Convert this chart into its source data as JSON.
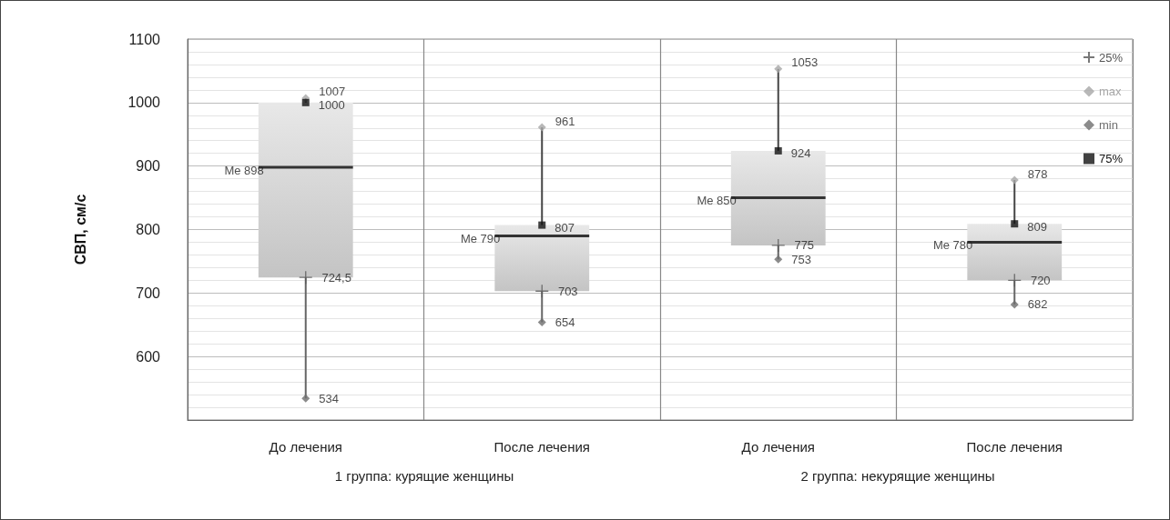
{
  "chart_data": {
    "type": "box",
    "ylabel": "СВП, см/с",
    "categories": [
      "До лечения",
      "После лечения",
      "До лечения",
      "После лечения"
    ],
    "boxes": [
      {
        "low": 534,
        "q1": 724.5,
        "median": 898,
        "q3": 1000,
        "high": 1007
      },
      {
        "low": 654,
        "q1": 703,
        "median": 790,
        "q3": 807,
        "high": 961
      },
      {
        "low": 753,
        "q1": 775,
        "median": 850,
        "q3": 924,
        "high": 1053
      },
      {
        "low": 682,
        "q1": 720,
        "median": 780,
        "q3": 809,
        "high": 878
      }
    ],
    "series": [
      {
        "type": "scatter",
        "name": "25%",
        "color": "#555555",
        "marker": "cross",
        "values": [
          724.5,
          703,
          775,
          720
        ],
        "value_labels": [
          "724,5",
          "703",
          "775",
          "720"
        ]
      },
      {
        "type": "scatter",
        "name": "max",
        "color": "#a6a6a6",
        "marker": "diamond",
        "values": [
          1007,
          961,
          1053,
          878
        ],
        "value_labels": [
          "1007",
          "961",
          "1053",
          "878"
        ]
      },
      {
        "type": "scatter",
        "name": "min",
        "color": "#6e6e6e",
        "marker": "diamond",
        "values": [
          534,
          654,
          753,
          682
        ],
        "value_labels": [
          "534",
          "654",
          "753",
          "682"
        ]
      },
      {
        "type": "scatter",
        "name": "75%",
        "color": "#111111",
        "marker": "square",
        "values": [
          1000,
          807,
          924,
          809
        ],
        "value_labels": [
          "1000",
          "807",
          "924",
          "809"
        ]
      }
    ],
    "ylim": [
      500,
      1100
    ],
    "yticks": [
      {
        "value": 500,
        "label": null
      },
      600,
      700,
      800,
      900,
      1000,
      1100
    ],
    "grid": "y",
    "legend": "top right",
    "annotations": [
      "Me 898",
      "Me 790",
      "Me 850",
      "Me 780",
      "1 группа: курящие женщины",
      "2 группа: некурящие женщины"
    ]
  }
}
